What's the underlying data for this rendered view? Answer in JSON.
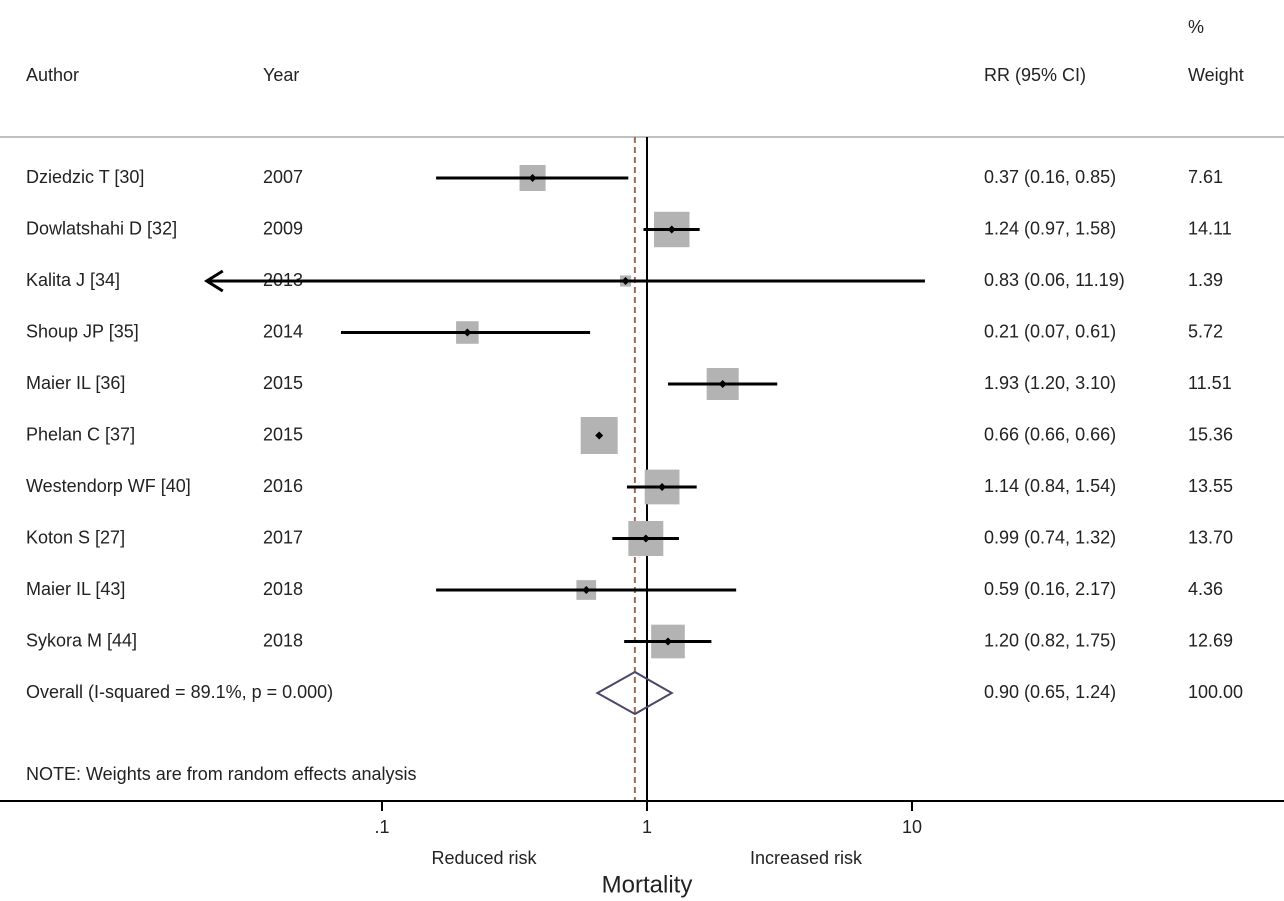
{
  "headers": {
    "author": "Author",
    "year": "Year",
    "rr": "RR (95% CI)",
    "weight_top": "%",
    "weight": "Weight"
  },
  "chart_data": {
    "type": "forest",
    "x_scale": "log",
    "xlim": [
      0.02,
      20
    ],
    "xticks": [
      0.1,
      1,
      10
    ],
    "xtick_labels": [
      ".1",
      "1",
      "10"
    ],
    "null_value": 1,
    "xlabel": "Mortality",
    "left_label": "Reduced risk",
    "right_label": "Increased risk",
    "studies": [
      {
        "author": "Dziedzic T [30]",
        "year": "2007",
        "rr": 0.37,
        "lo": 0.16,
        "hi": 0.85,
        "ci_text": "0.37 (0.16, 0.85)",
        "weight": 7.61,
        "weight_text": "7.61"
      },
      {
        "author": "Dowlatshahi D [32]",
        "year": "2009",
        "rr": 1.24,
        "lo": 0.97,
        "hi": 1.58,
        "ci_text": "1.24 (0.97, 1.58)",
        "weight": 14.11,
        "weight_text": "14.11"
      },
      {
        "author": "Kalita J [34]",
        "year": "2013",
        "rr": 0.83,
        "lo": 0.06,
        "hi": 11.19,
        "ci_text": "0.83 (0.06, 11.19)",
        "weight": 1.39,
        "weight_text": "1.39",
        "lo_arrow": true
      },
      {
        "author": "Shoup JP [35]",
        "year": "2014",
        "rr": 0.21,
        "lo": 0.07,
        "hi": 0.61,
        "ci_text": "0.21 (0.07, 0.61)",
        "weight": 5.72,
        "weight_text": "5.72"
      },
      {
        "author": "Maier IL [36]",
        "year": "2015",
        "rr": 1.93,
        "lo": 1.2,
        "hi": 3.1,
        "ci_text": "1.93 (1.20, 3.10)",
        "weight": 11.51,
        "weight_text": "11.51"
      },
      {
        "author": "Phelan C [37]",
        "year": "2015",
        "rr": 0.66,
        "lo": 0.66,
        "hi": 0.66,
        "ci_text": "0.66 (0.66, 0.66)",
        "weight": 15.36,
        "weight_text": "15.36"
      },
      {
        "author": "Westendorp WF [40]",
        "year": "2016",
        "rr": 1.14,
        "lo": 0.84,
        "hi": 1.54,
        "ci_text": "1.14 (0.84, 1.54)",
        "weight": 13.55,
        "weight_text": "13.55"
      },
      {
        "author": "Koton S [27]",
        "year": "2017",
        "rr": 0.99,
        "lo": 0.74,
        "hi": 1.32,
        "ci_text": "0.99 (0.74, 1.32)",
        "weight": 13.7,
        "weight_text": "13.70"
      },
      {
        "author": "Maier IL [43]",
        "year": "2018",
        "rr": 0.59,
        "lo": 0.16,
        "hi": 2.17,
        "ci_text": "0.59 (0.16, 2.17)",
        "weight": 4.36,
        "weight_text": "4.36"
      },
      {
        "author": "Sykora M [44]",
        "year": "2018",
        "rr": 1.2,
        "lo": 0.82,
        "hi": 1.75,
        "ci_text": "1.20 (0.82, 1.75)",
        "weight": 12.69,
        "weight_text": "12.69"
      }
    ],
    "overall": {
      "label": "Overall  (I-squared = 89.1%, p = 0.000)",
      "rr": 0.9,
      "lo": 0.65,
      "hi": 1.24,
      "ci_text": "0.90 (0.65, 1.24)",
      "weight_text": "100.00"
    },
    "note": "NOTE: Weights are from random effects analysis"
  },
  "colors": {
    "box": "#b3b3b3",
    "line": "#000000",
    "null_line": "#000000",
    "overall_line": "#9c6d55",
    "diamond": "#4a4868",
    "separator": "#c0c0c0"
  }
}
